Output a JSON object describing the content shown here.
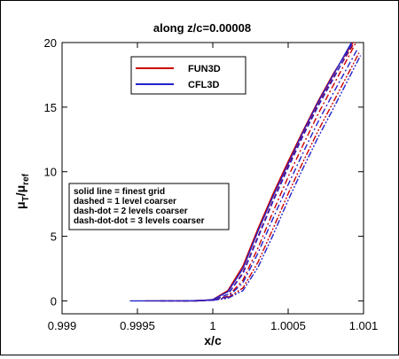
{
  "chart_data": {
    "type": "line",
    "title": "along z/c=0.00008",
    "xlabel": "x/c",
    "ylabel_parts": {
      "main": "μ",
      "sub1": "T",
      "sep": "/μ",
      "sub2": "ref"
    },
    "xlim": [
      0.999,
      1.001
    ],
    "ylim": [
      -1,
      20
    ],
    "xticks": [
      0.999,
      0.9995,
      1,
      1.0005,
      1.001
    ],
    "xtick_labels": [
      "0.999",
      "0.9995",
      "1",
      "1.0005",
      "1.001"
    ],
    "yticks": [
      0,
      5,
      10,
      15,
      20
    ],
    "ytick_labels": [
      "0",
      "5",
      "10",
      "15",
      "20"
    ],
    "grid": false,
    "legend": {
      "placement": "top-center",
      "entries": [
        {
          "label": "FUN3D",
          "color": "#cc0000"
        },
        {
          "label": "CFL3D",
          "color": "#2222cc"
        }
      ]
    },
    "annotation": {
      "lines": [
        "solid line = finest grid",
        "dashed = 1 level coarser",
        "dash-dot = 2 levels coarser",
        "dash-dot-dot = 3 levels coarser"
      ]
    },
    "series": [
      {
        "name": "FUN3D",
        "color": "#cc0000",
        "style": "solid",
        "x": [
          0.99955,
          0.9999,
          1.0,
          1.0001,
          1.0002,
          1.0003,
          1.0004,
          1.0005,
          1.0006,
          1.0007,
          1.0008,
          1.00093
        ],
        "y": [
          0,
          0,
          0.1,
          0.8,
          2.7,
          5.6,
          8.3,
          10.8,
          13.2,
          15.5,
          17.6,
          20.0
        ]
      },
      {
        "name": "CFL3D",
        "color": "#2222cc",
        "style": "solid",
        "x": [
          0.99945,
          0.9999,
          1.0,
          1.0001,
          1.0002,
          1.0003,
          1.0004,
          1.0005,
          1.0006,
          1.0007,
          1.0008,
          1.00092
        ],
        "y": [
          0,
          0,
          0.1,
          0.7,
          2.5,
          5.4,
          8.1,
          10.6,
          13.1,
          15.4,
          17.5,
          20.0
        ]
      },
      {
        "name": "FUN3D",
        "color": "#cc0000",
        "style": "dashed",
        "x": [
          0.99965,
          0.9999,
          1.0,
          1.0001,
          1.0002,
          1.0003,
          1.0004,
          1.0005,
          1.0006,
          1.0007,
          1.0008,
          1.00094
        ],
        "y": [
          0,
          0,
          0.05,
          0.5,
          2.2,
          5.0,
          7.8,
          10.4,
          12.9,
          15.2,
          17.3,
          20.0
        ]
      },
      {
        "name": "CFL3D",
        "color": "#2222cc",
        "style": "dashed",
        "x": [
          0.99965,
          0.9999,
          1.0,
          1.0001,
          1.0002,
          1.0003,
          1.0004,
          1.0005,
          1.0006,
          1.0007,
          1.0008,
          1.00093
        ],
        "y": [
          0,
          0,
          0.05,
          0.5,
          2.1,
          4.9,
          7.7,
          10.3,
          12.8,
          15.1,
          17.2,
          20.0
        ]
      },
      {
        "name": "FUN3D",
        "color": "#cc0000",
        "style": "dashdot",
        "x": [
          0.9998,
          1.0,
          1.0001,
          1.0002,
          1.0003,
          1.0004,
          1.0005,
          1.0006,
          1.0007,
          1.0008,
          1.00095
        ],
        "y": [
          0,
          0.05,
          0.35,
          1.6,
          4.1,
          6.9,
          9.6,
          12.1,
          14.5,
          16.7,
          20.0
        ]
      },
      {
        "name": "CFL3D",
        "color": "#2222cc",
        "style": "dashdot",
        "x": [
          0.9998,
          1.0,
          1.0001,
          1.0002,
          1.0003,
          1.0004,
          1.0005,
          1.0006,
          1.0007,
          1.0008,
          1.00096
        ],
        "y": [
          0,
          0.05,
          0.3,
          1.4,
          3.7,
          6.4,
          9.0,
          11.5,
          13.9,
          16.1,
          19.5
        ]
      },
      {
        "name": "FUN3D",
        "color": "#cc0000",
        "style": "dashdotdot",
        "x": [
          0.9998,
          1.0,
          1.0001,
          1.0002,
          1.0003,
          1.0004,
          1.0005,
          1.0006,
          1.0007,
          1.0008,
          1.00097
        ],
        "y": [
          0,
          0.05,
          0.25,
          1.0,
          3.0,
          5.6,
          8.3,
          10.8,
          13.2,
          15.4,
          19.2
        ]
      },
      {
        "name": "CFL3D",
        "color": "#2222cc",
        "style": "dashdotdot",
        "x": [
          0.9998,
          1.0,
          1.0001,
          1.0002,
          1.0003,
          1.0004,
          1.0005,
          1.0006,
          1.0007,
          1.0008,
          1.00098
        ],
        "y": [
          0,
          0.05,
          0.2,
          0.8,
          2.6,
          5.1,
          7.8,
          10.3,
          12.7,
          14.9,
          19.0
        ]
      }
    ]
  }
}
